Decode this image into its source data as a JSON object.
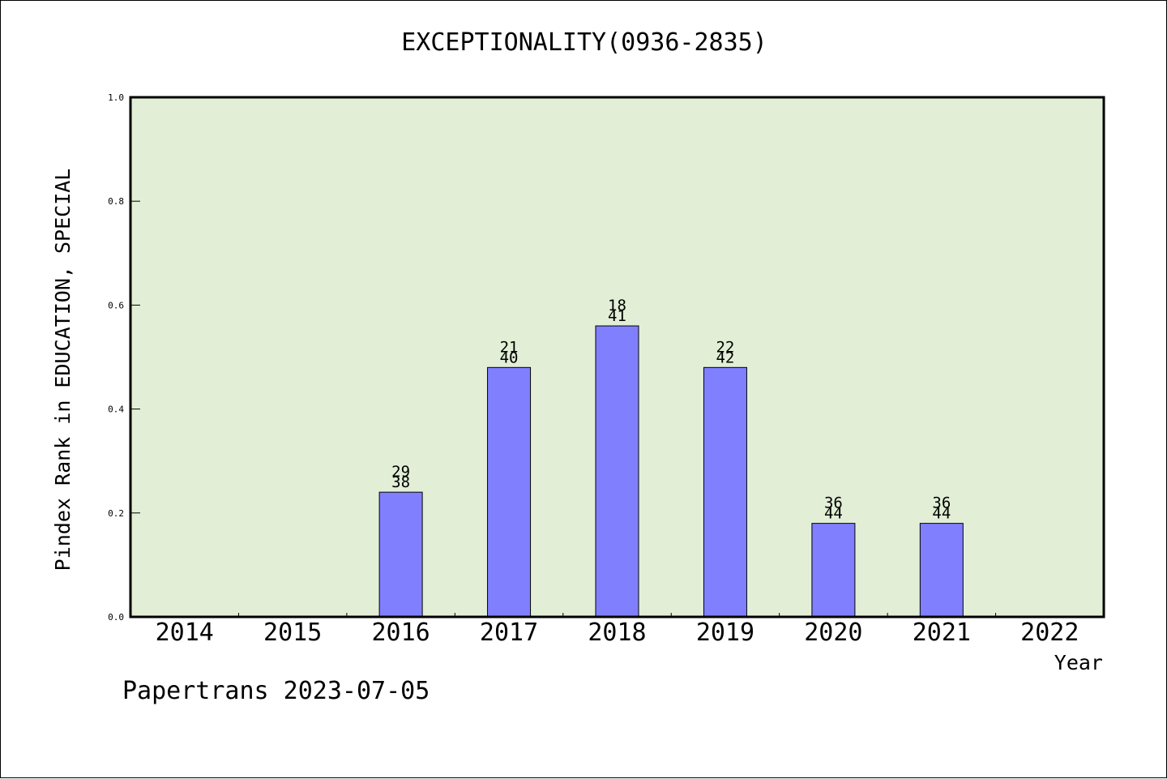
{
  "chart_data": {
    "type": "bar",
    "title": "EXCEPTIONALITY(0936-2835)",
    "xlabel": "Year",
    "ylabel": "Pindex Rank in EDUCATION, SPECIAL",
    "categories": [
      "2014",
      "2015",
      "2016",
      "2017",
      "2018",
      "2019",
      "2020",
      "2021",
      "2022"
    ],
    "values": [
      null,
      null,
      0.24,
      0.48,
      0.56,
      0.48,
      0.18,
      0.18,
      null
    ],
    "bar_labels_top": [
      "",
      "",
      "29",
      "21",
      "18",
      "22",
      "36",
      "36",
      ""
    ],
    "bar_labels_bottom": [
      "",
      "",
      "38",
      "40",
      "41",
      "42",
      "44",
      "44",
      ""
    ],
    "ylim": [
      0,
      1.0
    ],
    "yticks": [
      "0.0",
      "0.2",
      "0.4",
      "0.6",
      "0.8",
      "1.0"
    ],
    "grid": false,
    "legend": false,
    "colors": {
      "plot_bg": "#e2efd6",
      "bar": "#8080ff",
      "frame": "#000000"
    }
  },
  "footer": {
    "text": "Papertrans 2023-07-05"
  }
}
